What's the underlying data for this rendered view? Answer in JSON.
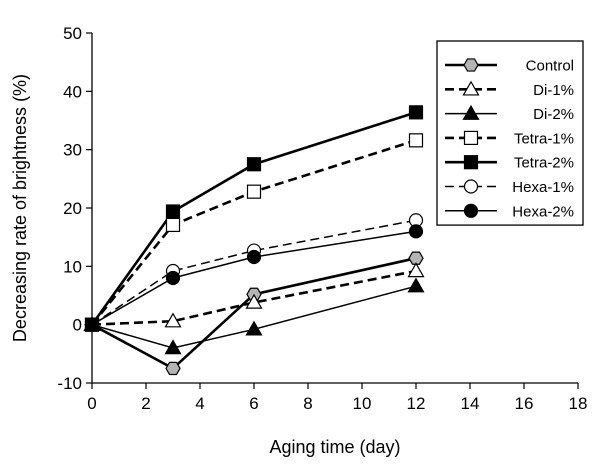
{
  "chart_data": {
    "type": "line",
    "title": "",
    "xlabel": "Aging time (day)",
    "ylabel": "Decreasing rate of brightness (%)",
    "xlim": [
      0,
      18
    ],
    "ylim": [
      -10,
      50
    ],
    "xticks": [
      0,
      2,
      4,
      6,
      8,
      10,
      12,
      14,
      16,
      18
    ],
    "yticks": [
      -10,
      0,
      10,
      20,
      30,
      40,
      50
    ],
    "grid": false,
    "legend_position": "top-right",
    "x": [
      0,
      3,
      6,
      12
    ],
    "series": [
      {
        "name": "Control",
        "values": [
          0,
          -7.5,
          5.2,
          11.4
        ],
        "marker": "hexagon",
        "marker_fill": "#b4b4b4",
        "line_style": "solid",
        "line_weight": "thick"
      },
      {
        "name": "Di-1%",
        "values": [
          0,
          0.6,
          3.8,
          9.2
        ],
        "marker": "triangle",
        "marker_fill": "#ffffff",
        "line_style": "dashed",
        "line_weight": "thick"
      },
      {
        "name": "Di-2%",
        "values": [
          0,
          -4.0,
          -0.8,
          6.6
        ],
        "marker": "triangle",
        "marker_fill": "#000000",
        "line_style": "solid",
        "line_weight": "thin"
      },
      {
        "name": "Tetra-1%",
        "values": [
          0,
          17.1,
          22.8,
          31.6
        ],
        "marker": "square",
        "marker_fill": "#ffffff",
        "line_style": "dashed",
        "line_weight": "thick"
      },
      {
        "name": "Tetra-2%",
        "values": [
          0,
          19.4,
          27.5,
          36.4
        ],
        "marker": "square",
        "marker_fill": "#000000",
        "line_style": "solid",
        "line_weight": "thick"
      },
      {
        "name": "Hexa-1%",
        "values": [
          0,
          9.2,
          12.7,
          17.9
        ],
        "marker": "circle",
        "marker_fill": "#ffffff",
        "line_style": "dashed",
        "line_weight": "thin"
      },
      {
        "name": "Hexa-2%",
        "values": [
          0,
          8.0,
          11.6,
          16.0
        ],
        "marker": "circle",
        "marker_fill": "#000000",
        "line_style": "solid",
        "line_weight": "thin"
      }
    ]
  }
}
